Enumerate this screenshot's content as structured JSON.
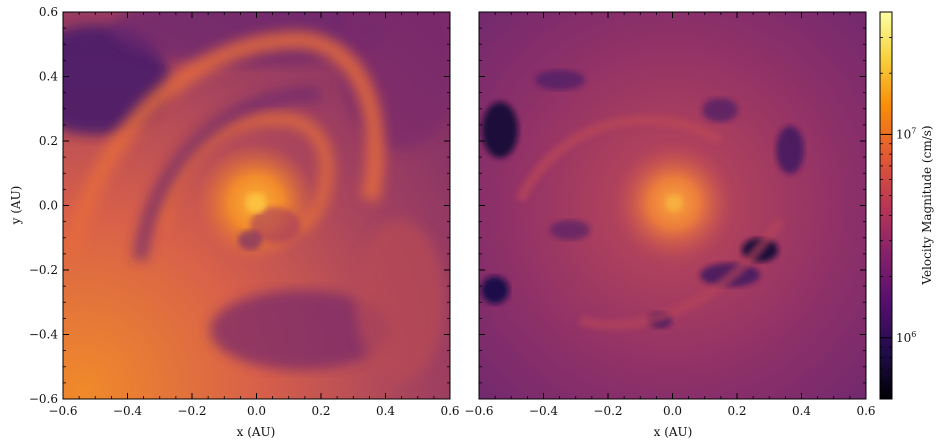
{
  "chart_data": [
    {
      "type": "heatmap",
      "panel": "left",
      "xlabel": "x (AU)",
      "ylabel": "y (AU)",
      "xlim": [
        -0.6,
        0.6
      ],
      "ylim": [
        -0.6,
        0.6
      ],
      "x_ticks": [
        -0.6,
        -0.4,
        -0.2,
        0.0,
        0.2,
        0.4,
        0.6
      ],
      "y_ticks": [
        -0.6,
        -0.4,
        -0.2,
        0.0,
        0.2,
        0.4,
        0.6
      ],
      "x_tick_labels": [
        "−0.6",
        "−0.4",
        "−0.2",
        "0.0",
        "0.2",
        "0.4",
        "0.6"
      ],
      "y_tick_labels": [
        "−0.6",
        "−0.4",
        "−0.2",
        "0.0",
        "0.2",
        "0.4",
        "0.6"
      ]
    },
    {
      "type": "heatmap",
      "panel": "right",
      "xlabel": "x (AU)",
      "ylabel": "",
      "xlim": [
        -0.6,
        0.6
      ],
      "ylim": [
        -0.6,
        0.6
      ],
      "x_ticks": [
        -0.6,
        -0.4,
        -0.2,
        0.0,
        0.2,
        0.4,
        0.6
      ],
      "x_tick_labels": [
        "−0.6",
        "−0.4",
        "−0.2",
        "0.0",
        "0.2",
        "0.4",
        "0.6"
      ]
    }
  ],
  "colorbar": {
    "label": "Velocity Magnitude (cm/s)",
    "scale": "log",
    "tick_labels": [
      {
        "base": "10",
        "exp": "7",
        "value": 10000000
      },
      {
        "base": "10",
        "exp": "6",
        "value": 1000000
      }
    ],
    "range": [
      500000,
      40000000
    ],
    "colormap": "inferno",
    "colors": [
      "#000004",
      "#1f0c48",
      "#550f6d",
      "#88226a",
      "#ba3655",
      "#e35933",
      "#f98e09",
      "#f7d13d",
      "#fcffa4"
    ]
  }
}
